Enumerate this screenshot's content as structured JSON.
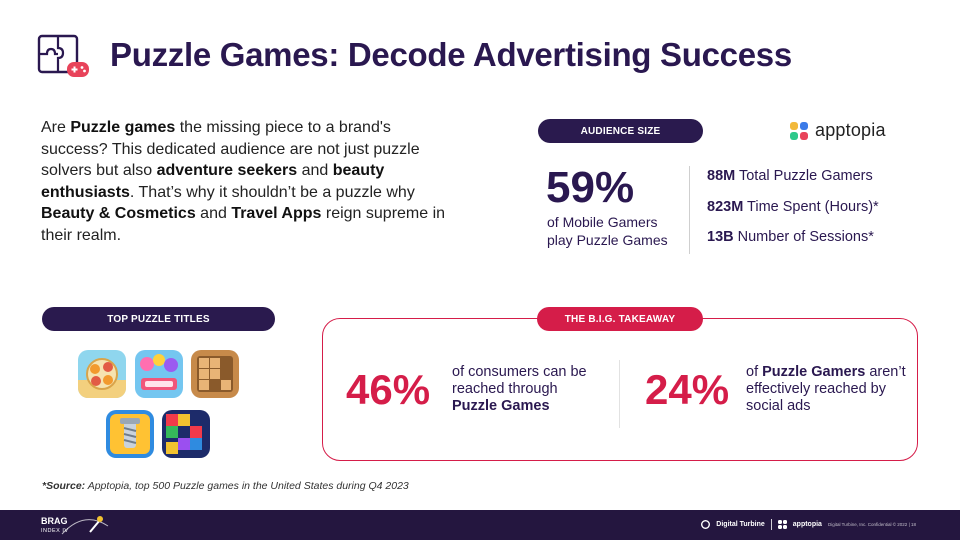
{
  "header": {
    "icon": "puzzle-gamepad-icon",
    "title": "Puzzle Games: Decode Advertising Success"
  },
  "intro": {
    "t1": "Are ",
    "b1": "Puzzle games",
    "t2": " the missing piece to a brand's success? This dedicated audience are not just puzzle solvers but also ",
    "b2": "adventure seekers",
    "t3": " and ",
    "b3": "beauty enthusiasts",
    "t4": ". That’s why it shouldn’t be a puzzle why ",
    "b4": "Beauty & Cosmetics",
    "t5": " and ",
    "b5": "Travel Apps",
    "t6": " reign supreme in their realm."
  },
  "audience": {
    "pill": "AUDIENCE SIZE",
    "brand": "apptopia",
    "big_value": "59%",
    "big_desc": "of Mobile Gamers play Puzzle Games",
    "stats": [
      {
        "num": "88M",
        "label": " Total Puzzle Gamers"
      },
      {
        "num": "823M",
        "label": " Time Spent (Hours)*"
      },
      {
        "num": "13B",
        "label": " Number of Sessions*"
      }
    ]
  },
  "top_titles": {
    "pill": "TOP PUZZLE TITLES",
    "icons": [
      "word-game-icon",
      "candy-soda-icon",
      "wood-block-icon",
      "screw-puzzle-icon",
      "block-blast-icon"
    ]
  },
  "takeaway": {
    "pill": "THE B.I.G. TAKEAWAY",
    "left_pct": "46%",
    "left_t1": "of consumers can be reached through ",
    "left_b1": "Puzzle Games",
    "right_pct": "24%",
    "right_t1": "of ",
    "right_b1": "Puzzle Gamers",
    "right_t2": " aren’t effectively reached by social ads"
  },
  "source": {
    "label": "*Source:",
    "text": " Apptopia, top 500 Puzzle games in the United States during Q4 2023"
  },
  "footer": {
    "brag": "BRAG",
    "brag_sub": "INDEX IV",
    "dt": "Digital Turbine",
    "apptopia": "apptopia",
    "legal": "Digital Turbine, Inc. Confidential © 2022  |  18"
  },
  "colors": {
    "brand_navy": "#2a1a4e",
    "accent_red": "#d51d49"
  }
}
